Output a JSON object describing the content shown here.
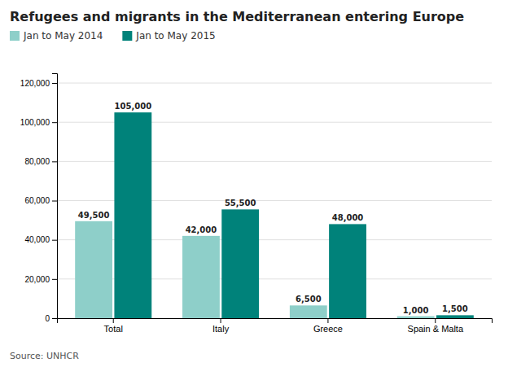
{
  "chart_data": {
    "type": "bar",
    "title": "Refugees and migrants in the Mediterranean entering Europe",
    "categories": [
      "Total",
      "Italy",
      "Greece",
      "Spain & Malta"
    ],
    "series": [
      {
        "name": "Jan to May 2014",
        "color": "#8ecfc9",
        "values": [
          49500,
          42000,
          6500,
          1000
        ],
        "value_labels": [
          "49,500",
          "42,000",
          "6,500",
          "1,000"
        ]
      },
      {
        "name": "Jan to May 2015",
        "color": "#00827a",
        "values": [
          105000,
          55500,
          48000,
          1500
        ],
        "value_labels": [
          "105,000",
          "55,500",
          "48,000",
          "1,500"
        ]
      }
    ],
    "ylim": [
      0,
      125000
    ],
    "yticks": [
      0,
      {
        "value": 20000,
        "label": "20,000"
      },
      {
        "value": 40000,
        "label": "40,000"
      },
      {
        "value": 60000,
        "label": "60,000"
      },
      {
        "value": 80000,
        "label": "80,000"
      },
      {
        "value": 100000,
        "label": "100,000"
      },
      {
        "value": 120000,
        "label": "120,000"
      }
    ],
    "grid": true,
    "legend": "top-left",
    "data_labels": true,
    "annotations": [
      "Source: UNHCR"
    ]
  }
}
